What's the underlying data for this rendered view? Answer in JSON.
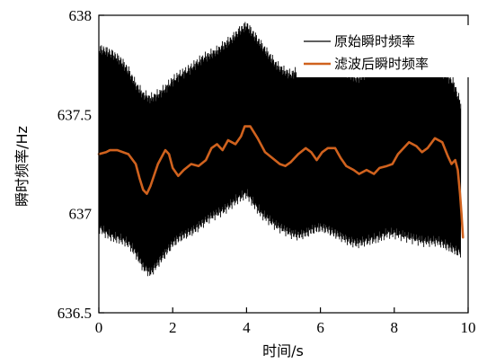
{
  "chart_data": {
    "type": "line",
    "xlabel": "时间/s",
    "ylabel": "瞬时频率/Hz",
    "xlim": [
      0,
      10
    ],
    "ylim": [
      636.5,
      638
    ],
    "x_ticks": [
      "0",
      "2",
      "4",
      "6",
      "8",
      "10"
    ],
    "y_ticks": [
      "636.5",
      "637",
      "637.5",
      "638"
    ],
    "legend_position": "top-right",
    "grid": false,
    "series": [
      {
        "name": "原始瞬时频率",
        "color": "#000000",
        "style": "dense oscillation band",
        "x": [
          0.0,
          0.2,
          0.4,
          0.6,
          0.8,
          1.0,
          1.2,
          1.4,
          1.6,
          1.8,
          2.0,
          2.2,
          2.4,
          2.6,
          2.8,
          3.0,
          3.2,
          3.4,
          3.6,
          3.8,
          4.0,
          4.2,
          4.4,
          4.6,
          4.8,
          5.0,
          5.2,
          5.4,
          5.6,
          5.8,
          6.0,
          6.2,
          6.4,
          6.6,
          6.8,
          7.0,
          7.2,
          7.4,
          7.6,
          7.8,
          8.0,
          8.2,
          8.4,
          8.6,
          8.8,
          9.0,
          9.2,
          9.4,
          9.6,
          9.8
        ],
        "upper": [
          637.83,
          637.82,
          637.8,
          637.77,
          637.72,
          637.65,
          637.6,
          637.58,
          637.6,
          637.63,
          637.67,
          637.7,
          637.72,
          637.75,
          637.78,
          637.8,
          637.82,
          637.85,
          637.88,
          637.92,
          637.95,
          637.9,
          637.85,
          637.8,
          637.75,
          637.72,
          637.7,
          637.72,
          637.75,
          637.78,
          637.8,
          637.78,
          637.75,
          637.72,
          637.7,
          637.68,
          637.7,
          637.72,
          637.75,
          637.78,
          637.8,
          637.78,
          637.75,
          637.73,
          637.72,
          637.73,
          637.72,
          637.7,
          637.66,
          637.55
        ],
        "lower": [
          636.93,
          636.9,
          636.88,
          636.87,
          636.85,
          636.8,
          636.73,
          636.7,
          636.75,
          636.8,
          636.85,
          636.88,
          636.9,
          636.92,
          636.95,
          636.98,
          637.0,
          637.02,
          637.05,
          637.08,
          637.1,
          637.05,
          637.0,
          636.97,
          636.94,
          636.92,
          636.9,
          636.89,
          636.9,
          636.92,
          636.93,
          636.92,
          636.9,
          636.88,
          636.86,
          636.85,
          636.86,
          636.87,
          636.88,
          636.9,
          636.9,
          636.89,
          636.88,
          636.87,
          636.86,
          636.86,
          636.86,
          636.84,
          636.82,
          636.8
        ]
      },
      {
        "name": "滤波后瞬时频率",
        "color": "#d0621e",
        "x": [
          0.0,
          0.2,
          0.3,
          0.5,
          0.8,
          1.0,
          1.1,
          1.2,
          1.3,
          1.4,
          1.6,
          1.8,
          1.9,
          2.0,
          2.15,
          2.3,
          2.5,
          2.7,
          2.9,
          3.05,
          3.2,
          3.35,
          3.5,
          3.7,
          3.85,
          3.95,
          4.1,
          4.3,
          4.5,
          4.7,
          4.9,
          5.05,
          5.2,
          5.4,
          5.6,
          5.75,
          5.9,
          6.05,
          6.2,
          6.4,
          6.55,
          6.7,
          6.9,
          7.05,
          7.25,
          7.45,
          7.6,
          7.8,
          7.95,
          8.1,
          8.25,
          8.4,
          8.6,
          8.75,
          8.9,
          9.1,
          9.3,
          9.45,
          9.55,
          9.65,
          9.72,
          9.78,
          9.82,
          9.86
        ],
        "y": [
          637.3,
          637.31,
          637.32,
          637.32,
          637.3,
          637.25,
          637.18,
          637.12,
          637.1,
          637.14,
          637.25,
          637.32,
          637.3,
          637.23,
          637.19,
          637.22,
          637.25,
          637.24,
          637.27,
          637.33,
          637.35,
          637.32,
          637.37,
          637.35,
          637.39,
          637.44,
          637.44,
          637.38,
          637.31,
          637.28,
          637.25,
          637.24,
          637.26,
          637.3,
          637.33,
          637.31,
          637.27,
          637.31,
          637.33,
          637.33,
          637.28,
          637.24,
          637.22,
          637.2,
          637.22,
          637.2,
          637.23,
          637.24,
          637.25,
          637.3,
          637.33,
          637.36,
          637.34,
          637.31,
          637.33,
          637.38,
          637.36,
          637.29,
          637.25,
          637.27,
          637.22,
          637.1,
          637.0,
          636.88
        ]
      }
    ]
  }
}
